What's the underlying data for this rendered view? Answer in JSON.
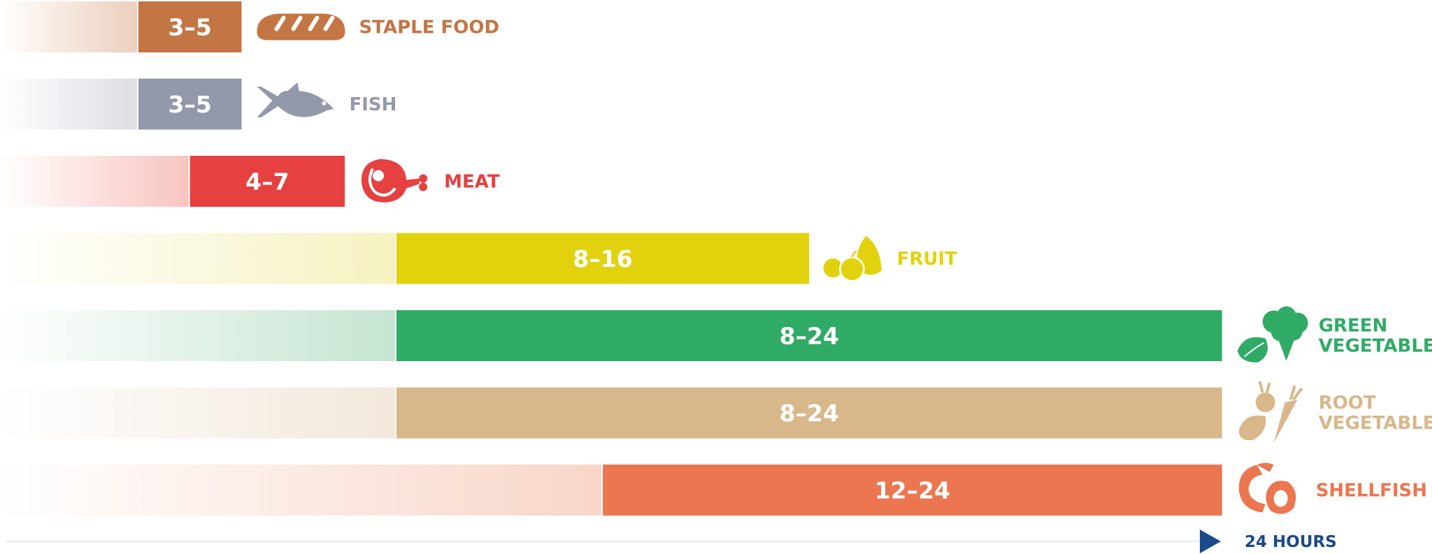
{
  "chart_data": {
    "type": "bar",
    "orientation": "horizontal",
    "unit_label": "24 HOURS",
    "categories": [
      {
        "label": "STAPLE FOOD",
        "value_label": "3–5",
        "min": 3,
        "max": 5,
        "color": "#c47544",
        "fade_color": "#eccfbd",
        "icon": "bread-icon"
      },
      {
        "label": "FISH",
        "value_label": "3–5",
        "min": 3,
        "max": 5,
        "color": "#9498ab",
        "fade_color": "#dddee4",
        "icon": "fish-icon"
      },
      {
        "label": "MEAT",
        "value_label": "4–7",
        "min": 4,
        "max": 7,
        "color": "#e64040",
        "fade_color": "#f8c4bf",
        "icon": "ham-icon"
      },
      {
        "label": "FRUIT",
        "value_label": "8–16",
        "min": 8,
        "max": 16,
        "color": "#e2d20e",
        "fade_color": "#f6f2c0",
        "icon": "fruit-icon"
      },
      {
        "label": "GREEN VEGETABLE",
        "value_label": "8–24",
        "min": 8,
        "max": 24,
        "color": "#30ab66",
        "fade_color": "#c5e5d2",
        "icon": "broccoli-icon"
      },
      {
        "label": "ROOT VEGETABLE",
        "value_label": "8–24",
        "min": 8,
        "max": 24,
        "color": "#d8b78a",
        "fade_color": "#f2e8db",
        "icon": "carrot-icon"
      },
      {
        "label": "SHELLFISH",
        "value_label": "12–24",
        "min": 12,
        "max": 24,
        "color": "#eb7650",
        "fade_color": "#f8d6c8",
        "icon": "shrimp-icon"
      }
    ],
    "xlim": [
      0,
      24
    ],
    "axis_color": "#1a4a8a"
  }
}
